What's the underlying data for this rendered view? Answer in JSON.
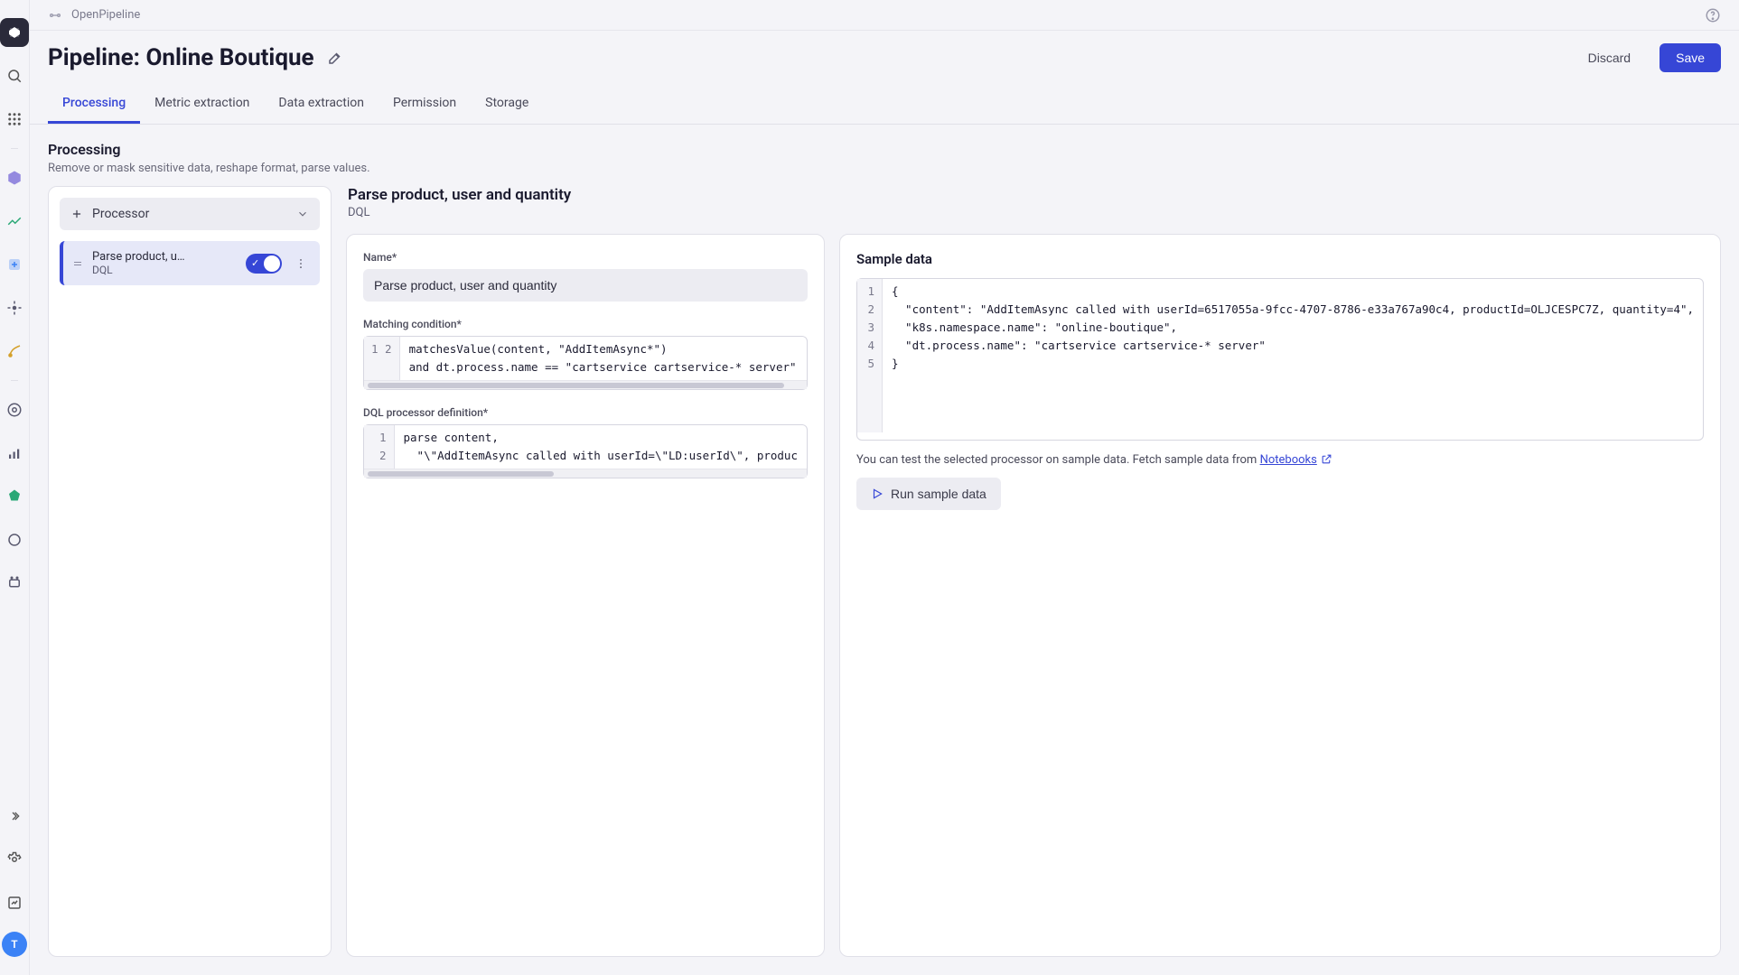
{
  "breadcrumb": {
    "app": "OpenPipeline"
  },
  "header": {
    "title": "Pipeline: Online Boutique",
    "discard": "Discard",
    "save": "Save"
  },
  "tabs": [
    {
      "label": "Processing",
      "active": true
    },
    {
      "label": "Metric extraction",
      "active": false
    },
    {
      "label": "Data extraction",
      "active": false
    },
    {
      "label": "Permission",
      "active": false
    },
    {
      "label": "Storage",
      "active": false
    }
  ],
  "section": {
    "title": "Processing",
    "subtitle": "Remove or mask sensitive data, reshape format, parse values."
  },
  "processors": {
    "add_label": "Processor",
    "items": [
      {
        "name": "Parse product, u…",
        "type": "DQL",
        "enabled": true
      }
    ]
  },
  "editor": {
    "title": "Parse product, user and quantity",
    "subtype": "DQL",
    "name_label": "Name*",
    "name_value": "Parse product, user and quantity",
    "matching_label": "Matching condition*",
    "matching_code": [
      "matchesValue(content, \"AddItemAsync*\")",
      "and dt.process.name == \"cartservice cartservice-* server\""
    ],
    "dql_label": "DQL processor definition*",
    "dql_code": [
      "parse content,",
      "  \"\\\"AddItemAsync called with userId=\\\"LD:userId\\\", produc"
    ]
  },
  "sample": {
    "title": "Sample data",
    "code": [
      "{",
      "  \"content\": \"AddItemAsync called with userId=6517055a-9fcc-4707-8786-e33a767a90c4, productId=OLJCESPC7Z, quantity=4\",",
      "  \"k8s.namespace.name\": \"online-boutique\",",
      "  \"dt.process.name\": \"cartservice cartservice-* server\"",
      "}"
    ],
    "help_prefix": "You can test the selected processor on sample data. Fetch sample data from ",
    "help_link": "Notebooks",
    "run_label": "Run sample data"
  },
  "avatar": "T",
  "colors": {
    "primary": "#3646d6",
    "bg": "#f4f4f8",
    "card": "#ffffff",
    "muted": "#6a6a7a",
    "border": "#e0e0e8"
  }
}
